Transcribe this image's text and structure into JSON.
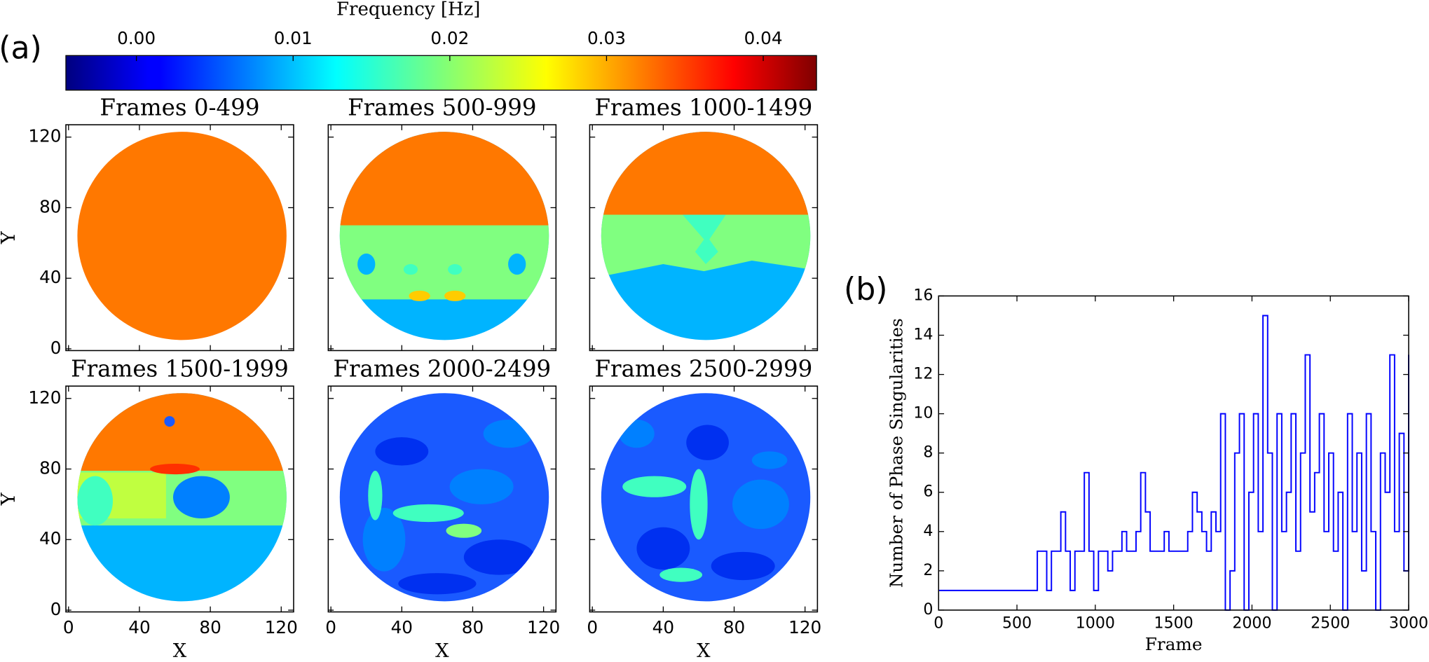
{
  "chart_data": [
    {
      "type": "heatmap",
      "label": "(a)",
      "colorbar_label": "Frequency [Hz]",
      "colormap": "jet",
      "colorbar_lim": [
        -0.0045,
        0.0434
      ],
      "colorbar_ticks": [
        {
          "value": 0,
          "label": "0.00"
        },
        {
          "value": 0.01,
          "label": "0.01"
        },
        {
          "value": 0.02,
          "label": "0.02"
        },
        {
          "value": 0.03,
          "label": "0.03"
        },
        {
          "value": 0.04,
          "label": "0.04"
        }
      ],
      "panels": [
        {
          "title": "Frames 0-499"
        },
        {
          "title": "Frames 500-999"
        },
        {
          "title": "Frames 1000-1499"
        },
        {
          "title": "Frames 1500-1999"
        },
        {
          "title": "Frames 2000-2499"
        },
        {
          "title": "Frames 2500-2999"
        }
      ],
      "xlabel": "X",
      "ylabel": "Y",
      "xlim": [
        -1.5,
        127
      ],
      "ylim": [
        -1,
        127
      ],
      "xticks": [
        0,
        40,
        80,
        120
      ],
      "yticks": [
        0,
        40,
        80,
        120
      ]
    },
    {
      "type": "line",
      "label": "(b)",
      "xlabel": "Frame",
      "ylabel": "Number of Phase Singularities",
      "color": "#0000ff",
      "step": "post",
      "xlim": [
        0,
        3000
      ],
      "ylim": [
        0,
        16
      ],
      "xticks": [
        0,
        500,
        1000,
        1500,
        2000,
        2500,
        3000
      ],
      "yticks": [
        0,
        2,
        4,
        6,
        8,
        10,
        12,
        14,
        16
      ],
      "x": [
        0,
        30,
        60,
        90,
        120,
        150,
        180,
        210,
        240,
        270,
        300,
        330,
        360,
        390,
        420,
        450,
        480,
        510,
        540,
        570,
        600,
        630,
        660,
        690,
        720,
        750,
        780,
        810,
        840,
        870,
        900,
        930,
        960,
        990,
        1020,
        1050,
        1080,
        1110,
        1140,
        1170,
        1200,
        1230,
        1260,
        1290,
        1320,
        1350,
        1380,
        1410,
        1440,
        1470,
        1500,
        1530,
        1560,
        1590,
        1620,
        1650,
        1680,
        1710,
        1740,
        1770,
        1800,
        1830,
        1860,
        1890,
        1920,
        1950,
        1980,
        2010,
        2040,
        2070,
        2100,
        2130,
        2160,
        2190,
        2220,
        2250,
        2280,
        2310,
        2340,
        2370,
        2400,
        2430,
        2460,
        2490,
        2520,
        2550,
        2580,
        2610,
        2640,
        2670,
        2700,
        2730,
        2760,
        2790,
        2820,
        2850,
        2880,
        2910,
        2940,
        2970,
        3000
      ],
      "values": [
        1,
        1,
        1,
        1,
        1,
        1,
        1,
        1,
        1,
        1,
        1,
        1,
        1,
        1,
        1,
        1,
        1,
        1,
        1,
        1,
        1,
        3,
        3,
        1,
        3,
        3,
        5,
        3,
        1,
        3,
        3,
        7,
        3,
        1,
        3,
        3,
        2,
        3,
        3,
        4,
        3,
        3,
        4,
        7,
        5,
        3,
        3,
        3,
        4,
        3,
        3,
        3,
        3,
        4,
        6,
        5,
        4,
        3,
        5,
        4,
        10,
        0,
        2,
        8,
        10,
        0,
        6,
        10,
        4,
        15,
        8,
        0,
        10,
        4,
        6,
        10,
        3,
        8,
        13,
        5,
        7,
        10,
        4,
        8,
        3,
        6,
        0,
        10,
        4,
        8,
        2,
        10,
        4,
        0,
        8,
        6,
        13,
        4,
        9,
        2,
        13
      ]
    }
  ]
}
